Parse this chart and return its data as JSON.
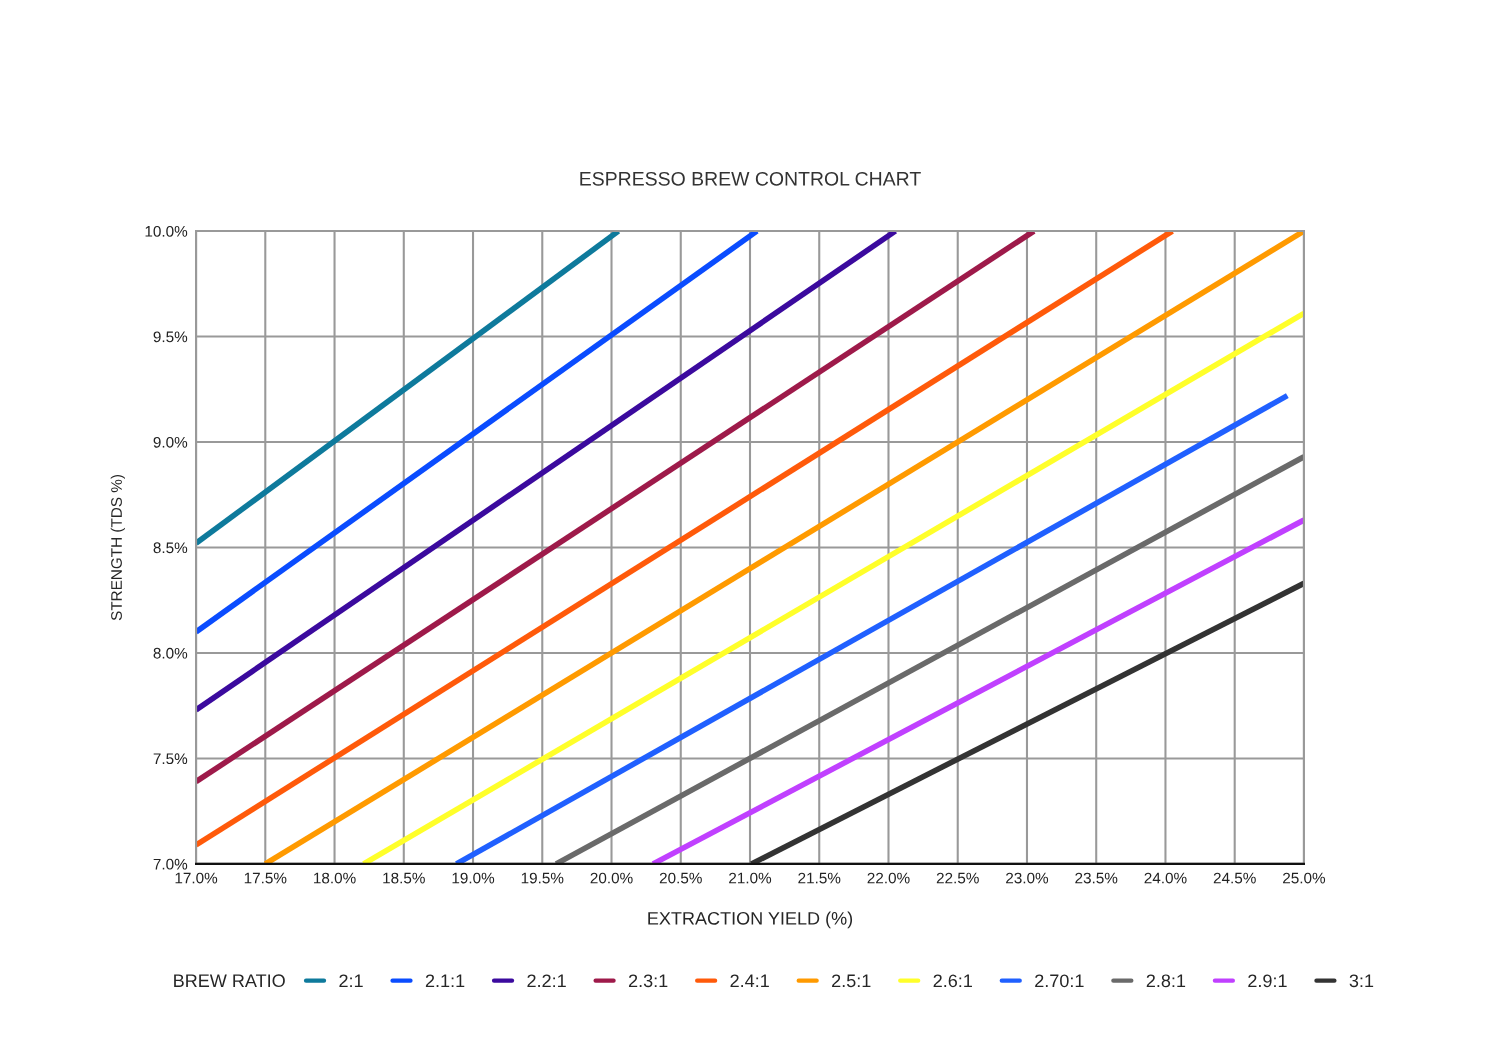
{
  "chart_data": {
    "type": "line",
    "title": "ESPRESSO BREW CONTROL CHART",
    "xlabel": "EXTRACTION YIELD (%)",
    "ylabel": "STRENGTH (TDS %)",
    "legend_title": "BREW RATIO",
    "xlim": [
      17.0,
      25.0
    ],
    "ylim": [
      7.0,
      10.0
    ],
    "xticks": [
      {
        "value": 17.0,
        "label": "17.0%"
      },
      {
        "value": 17.5,
        "label": "17.5%"
      },
      {
        "value": 18.0,
        "label": "18.0%"
      },
      {
        "value": 18.5,
        "label": "18.5%"
      },
      {
        "value": 19.0,
        "label": "19.0%"
      },
      {
        "value": 19.5,
        "label": "19.5%"
      },
      {
        "value": 20.0,
        "label": "20.0%"
      },
      {
        "value": 20.5,
        "label": "20.5%"
      },
      {
        "value": 21.0,
        "label": "21.0%"
      },
      {
        "value": 21.5,
        "label": "21.5%"
      },
      {
        "value": 22.0,
        "label": "22.0%"
      },
      {
        "value": 22.5,
        "label": "22.5%"
      },
      {
        "value": 23.0,
        "label": "23.0%"
      },
      {
        "value": 23.5,
        "label": "23.5%"
      },
      {
        "value": 24.0,
        "label": "24.0%"
      },
      {
        "value": 24.5,
        "label": "24.5%"
      },
      {
        "value": 25.0,
        "label": "25.0%"
      }
    ],
    "yticks": [
      {
        "value": 7.0,
        "label": "7.0%"
      },
      {
        "value": 7.5,
        "label": "7.5%"
      },
      {
        "value": 8.0,
        "label": "8.0%"
      },
      {
        "value": 8.5,
        "label": "8.5%"
      },
      {
        "value": 9.0,
        "label": "9.0%"
      },
      {
        "value": 9.5,
        "label": "9.5%"
      },
      {
        "value": 10.0,
        "label": "10.0%"
      }
    ],
    "grid": true,
    "legend": "bottom",
    "marker": "none",
    "line_style": "solid",
    "series": [
      {
        "name": "2:1",
        "color": "#0e7a9c",
        "x": [
          17.0,
          20.05
        ],
        "values": [
          8.52,
          10.0
        ]
      },
      {
        "name": "2.1:1",
        "color": "#0a4cff",
        "x": [
          17.0,
          21.05
        ],
        "values": [
          8.1,
          10.0
        ]
      },
      {
        "name": "2.2:1",
        "color": "#3b0a9e",
        "x": [
          17.0,
          22.05
        ],
        "values": [
          7.73,
          10.0
        ]
      },
      {
        "name": "2.3:1",
        "color": "#9e1a4a",
        "x": [
          17.0,
          23.05
        ],
        "values": [
          7.39,
          10.0
        ]
      },
      {
        "name": "2.4:1",
        "color": "#ff5a0a",
        "x": [
          17.0,
          24.05
        ],
        "values": [
          7.09,
          10.0
        ]
      },
      {
        "name": "2.5:1",
        "color": "#ff9a00",
        "x": [
          17.5,
          25.0
        ],
        "values": [
          7.0,
          10.0
        ]
      },
      {
        "name": "2.6:1",
        "color": "#ffff2a",
        "x": [
          18.21,
          25.0
        ],
        "values": [
          7.0,
          9.61
        ]
      },
      {
        "name": "2.70:1",
        "color": "#2060ff",
        "x": [
          18.88,
          24.88
        ],
        "values": [
          7.0,
          9.22
        ]
      },
      {
        "name": "2.8:1",
        "color": "#6a6a6a",
        "x": [
          19.6,
          25.0
        ],
        "values": [
          7.0,
          8.93
        ]
      },
      {
        "name": "2.9:1",
        "color": "#c040ff",
        "x": [
          20.3,
          25.0
        ],
        "values": [
          7.0,
          8.63
        ]
      },
      {
        "name": "3:1",
        "color": "#333333",
        "x": [
          21.01,
          25.0
        ],
        "values": [
          7.0,
          8.33
        ]
      }
    ]
  }
}
